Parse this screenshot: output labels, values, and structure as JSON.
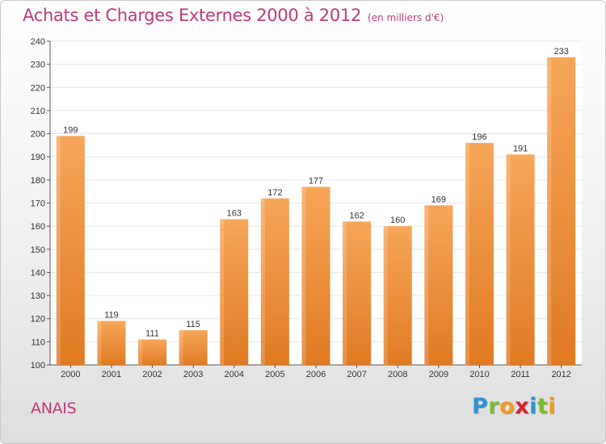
{
  "header": {
    "title": "Achats et Charges Externes 2000 à 2012",
    "unit": "(en milliers d'€)"
  },
  "footer": {
    "commune": "ANAIS",
    "logo_letters": [
      {
        "char": "P",
        "color": "#2f93d1"
      },
      {
        "char": "r",
        "color": "#7dbb2e"
      },
      {
        "char": "o",
        "color": "#f29a1f"
      },
      {
        "char": "x",
        "color": "#d6232d"
      },
      {
        "char": "i",
        "color": "#2f93d1"
      },
      {
        "char": "t",
        "color": "#7dbb2e"
      },
      {
        "char": "i",
        "color": "#f29a1f"
      }
    ]
  },
  "colors": {
    "accent": "#c0397a",
    "bar_light": "#f7a659",
    "bar_dark": "#e07a22",
    "grid": "#e6e6e6",
    "axis": "#555555"
  },
  "chart_data": {
    "type": "bar",
    "categories": [
      "2000",
      "2001",
      "2002",
      "2003",
      "2004",
      "2005",
      "2006",
      "2007",
      "2008",
      "2009",
      "2010",
      "2011",
      "2012"
    ],
    "values": [
      199,
      119,
      111,
      115,
      163,
      172,
      177,
      162,
      160,
      169,
      196,
      191,
      233
    ],
    "ylim": [
      100,
      240
    ],
    "yticks": [
      100,
      110,
      120,
      130,
      140,
      150,
      160,
      170,
      180,
      190,
      200,
      210,
      220,
      230,
      240
    ],
    "data_labels": true,
    "grid": true,
    "legend": "none"
  }
}
